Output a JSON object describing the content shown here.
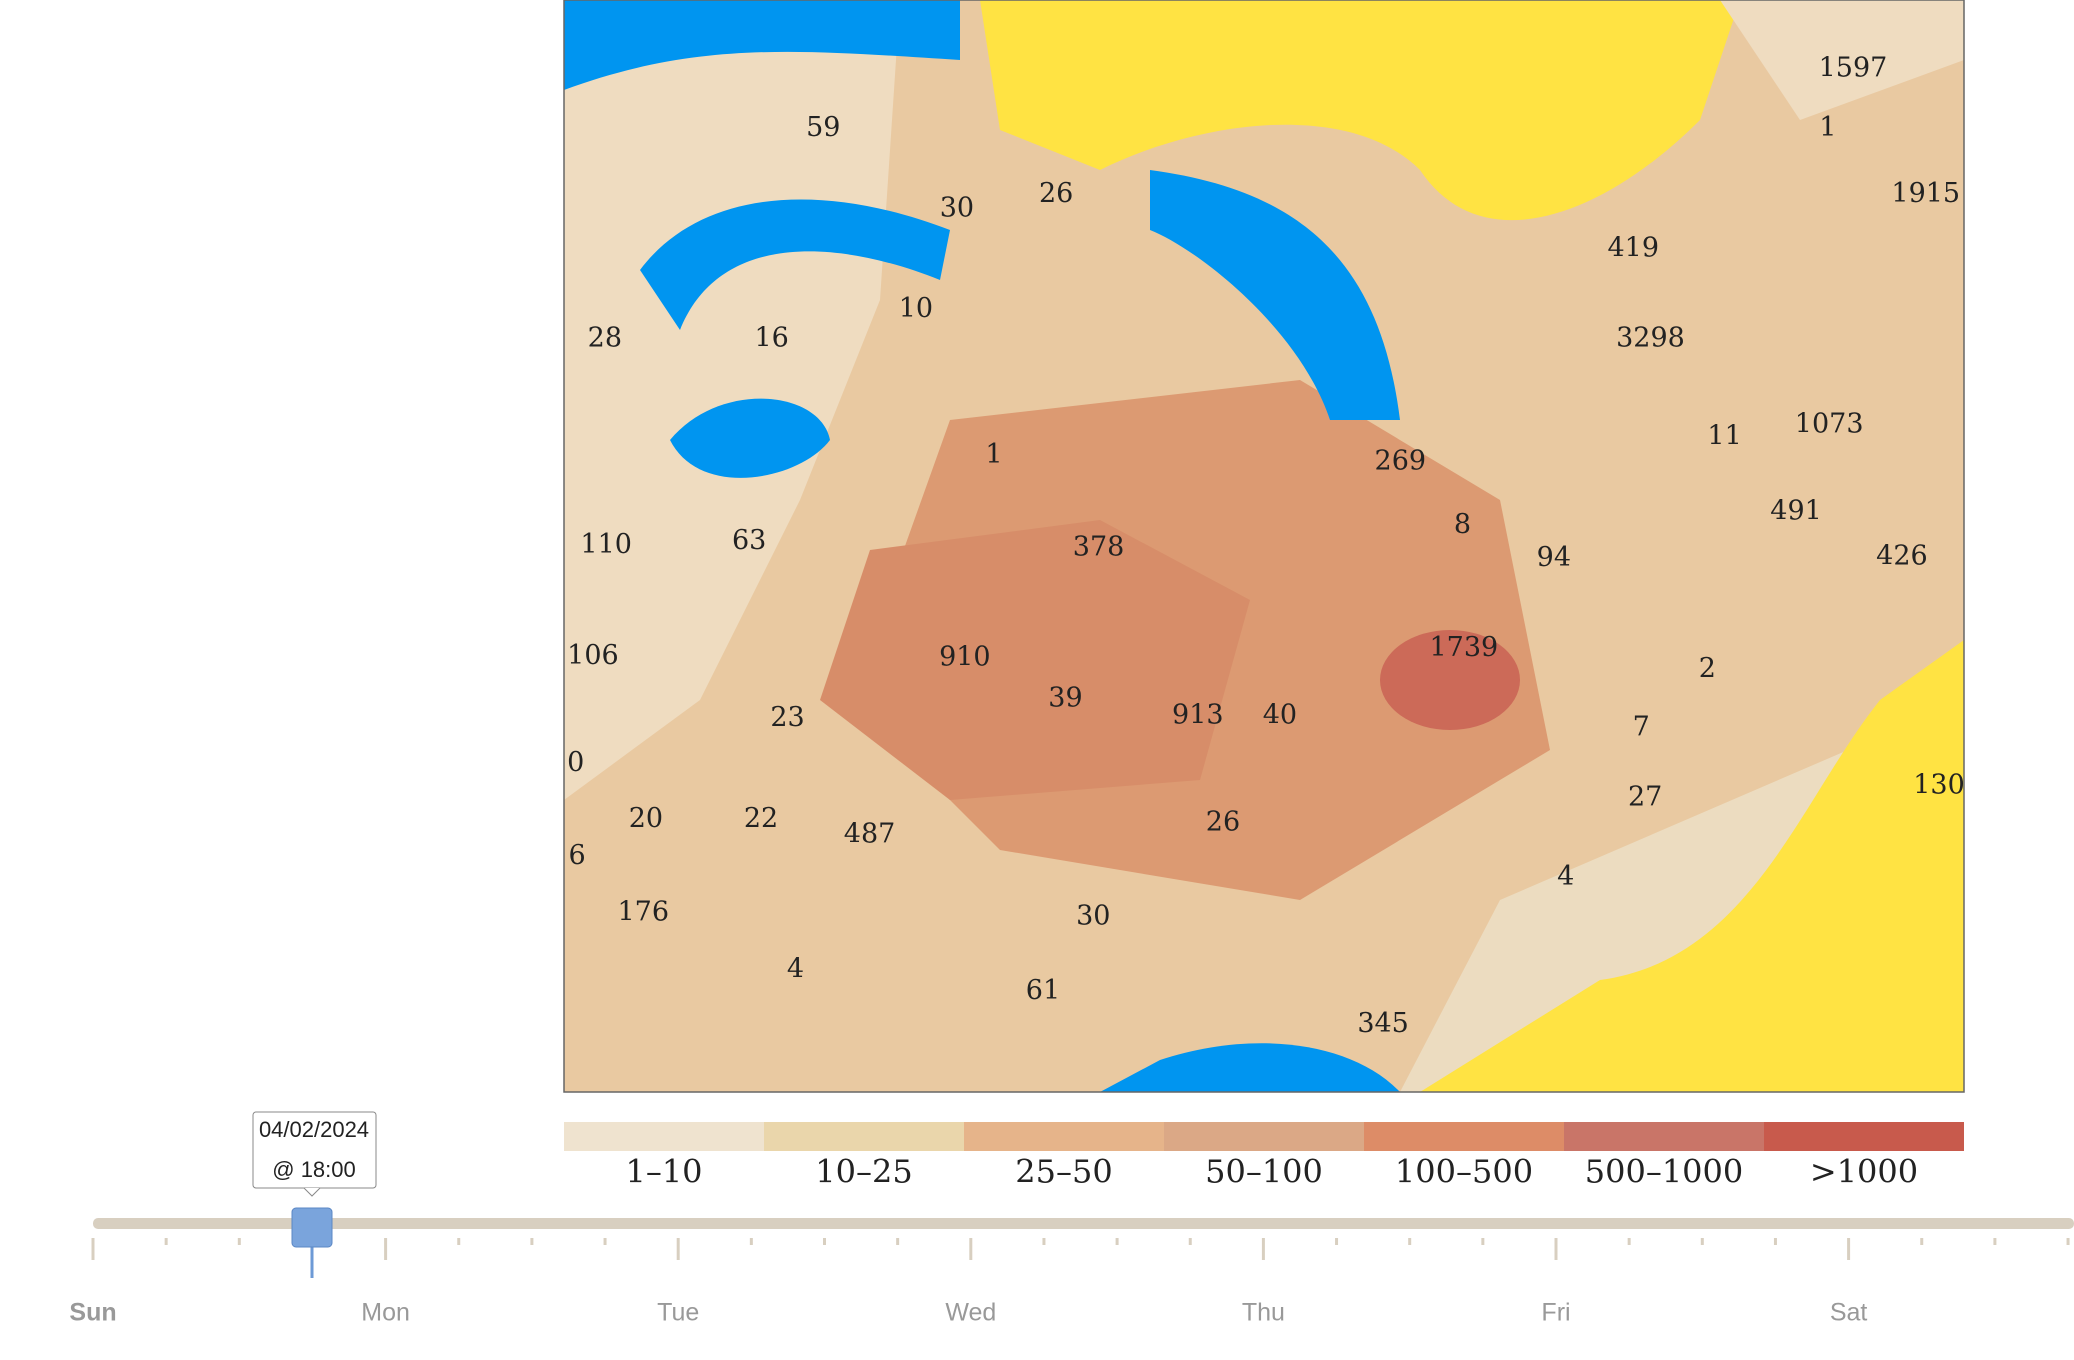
{
  "map": {
    "labels": [
      "1597",
      "1",
      "59",
      "30",
      "26",
      "1915",
      "419",
      "10",
      "28",
      "16",
      "3298",
      "11",
      "1073",
      "269",
      "8",
      "1",
      "378",
      "110",
      "63",
      "491",
      "94",
      "426",
      "1739",
      "910",
      "106",
      "39",
      "913",
      "40",
      "2",
      "23",
      "7",
      "0",
      "130",
      "20",
      "22",
      "487",
      "26",
      "27",
      "6",
      "4",
      "176",
      "30",
      "4",
      "61",
      "345"
    ]
  },
  "legend": {
    "items": [
      {
        "label": "1–10",
        "color": "#efe3cf"
      },
      {
        "label": "10–25",
        "color": "#ead6ab"
      },
      {
        "label": "25–50",
        "color": "#e6b48a"
      },
      {
        "label": "50–100",
        "color": "#dba886"
      },
      {
        "label": "100–500",
        "color": "#dd8c67"
      },
      {
        "label": "500–1000",
        "color": "#c97568"
      },
      {
        "label": ">1000",
        "color": "#c85a4c"
      }
    ]
  },
  "timeline": {
    "days": [
      "Sun",
      "Mon",
      "Tue",
      "Wed",
      "Thu",
      "Fri",
      "Sat"
    ],
    "tooltip": {
      "date": "04/02/2024",
      "time": "@ 18:00"
    }
  }
}
